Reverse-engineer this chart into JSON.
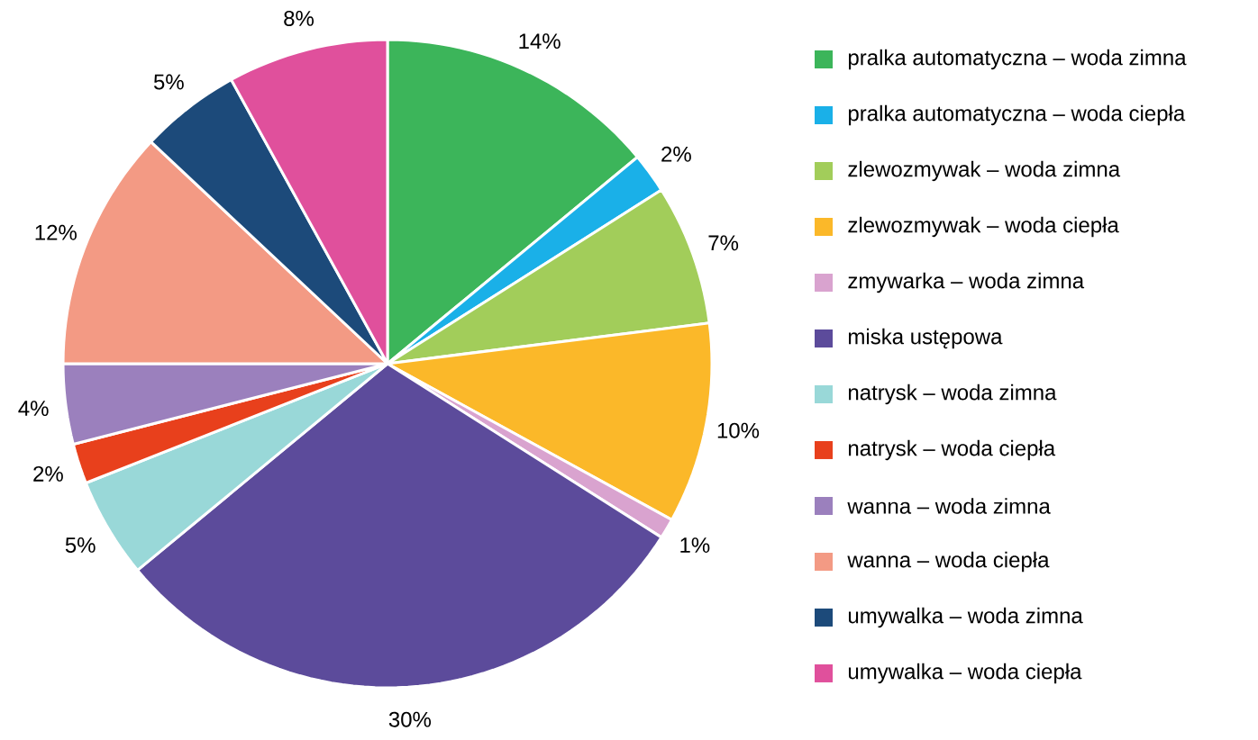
{
  "chart_data": {
    "type": "pie",
    "categories": [
      "pralka automatyczna – woda zimna",
      "pralka automatyczna – woda ciepła",
      "zlewozmywak – woda zimna",
      "zlewozmywak – woda ciepła",
      "zmywarka – woda zimna",
      "miska ustępowa",
      "natrysk – woda zimna",
      "natrysk – woda ciepła",
      "wanna – woda zimna",
      "wanna – woda ciepła",
      "umywalka – woda zimna",
      "umywalka – woda ciepła"
    ],
    "values": [
      14,
      2,
      7,
      10,
      1,
      30,
      5,
      2,
      4,
      12,
      5,
      8
    ],
    "value_labels": [
      "14%",
      "2%",
      "7%",
      "10%",
      "1%",
      "30%",
      "5%",
      "2%",
      "4%",
      "12%",
      "5%",
      "8%"
    ],
    "colors": [
      "#3cb55a",
      "#1ab0e8",
      "#a2cd5a",
      "#fbb829",
      "#d9a3cf",
      "#5c4b9b",
      "#99d8d8",
      "#e8401c",
      "#9b80bd",
      "#f39a84",
      "#1c4a7a",
      "#e0509c"
    ],
    "legend": "right"
  }
}
